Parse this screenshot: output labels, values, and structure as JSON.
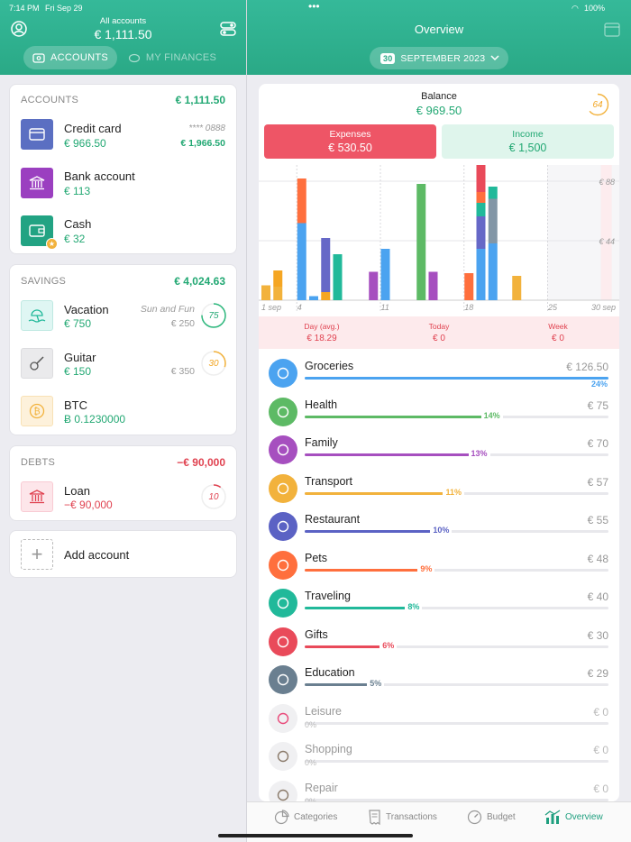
{
  "status": {
    "time": "7:14 PM",
    "date": "Fri Sep 29",
    "battery": "100%"
  },
  "left_header": {
    "subtitle": "All accounts",
    "total": "€ 1,111.50",
    "tabs": [
      "ACCOUNTS",
      "MY FINANCES"
    ],
    "active_tab": "ACCOUNTS"
  },
  "right_header": {
    "title": "Overview",
    "period_day": "30",
    "period_label": "SEPTEMBER 2023"
  },
  "accounts": {
    "title": "ACCOUNTS",
    "total": "€ 1,111.50",
    "items": [
      {
        "name": "Credit card",
        "value": "€ 966.50",
        "masked": "**** 0888",
        "limit": "€ 1,966.50",
        "icon": "credit-card-icon",
        "color": "#5b6fc2"
      },
      {
        "name": "Bank account",
        "value": "€ 113",
        "icon": "bank-icon",
        "color": "#9b3fc0"
      },
      {
        "name": "Cash",
        "value": "€ 32",
        "icon": "wallet-icon",
        "color": "#22a383"
      }
    ]
  },
  "savings": {
    "title": "SAVINGS",
    "total": "€ 4,024.63",
    "items": [
      {
        "name": "Vacation",
        "value": "€ 750",
        "note": "Sun and Fun",
        "goal": "€ 250",
        "ring": "75",
        "ring_color": "#2db87d",
        "icon": "beach-icon",
        "ring_fraction": 0.75
      },
      {
        "name": "Guitar",
        "value": "€ 150",
        "goal": "€ 350",
        "ring": "30",
        "ring_color": "#f2b23c",
        "icon": "guitar-icon",
        "ring_fraction": 0.3
      },
      {
        "name": "BTC",
        "value": "Ƀ 0.1230000",
        "icon": "bitcoin-icon"
      }
    ]
  },
  "debts": {
    "title": "DEBTS",
    "total": "−€ 90,000",
    "items": [
      {
        "name": "Loan",
        "value": "−€ 90,000",
        "ring": "10",
        "ring_color": "#e04250",
        "icon": "bank-icon",
        "ring_fraction": 0.1
      }
    ]
  },
  "add_account": {
    "label": "Add account"
  },
  "overview": {
    "balance_label": "Balance",
    "balance": "€ 969.50",
    "badge": "64",
    "expenses_label": "Expenses",
    "expenses": "€ 530.50",
    "income_label": "Income",
    "income": "€ 1,500",
    "stats": [
      {
        "label": "Day (avg.)",
        "value": "€ 18.29"
      },
      {
        "label": "Today",
        "value": "€ 0"
      },
      {
        "label": "Week",
        "value": "€ 0"
      }
    ]
  },
  "chart_data": {
    "type": "bar",
    "x_tick_labels": [
      "1 sep",
      "4",
      "11",
      "18",
      "25",
      "30 sep"
    ],
    "y_tick_labels": [
      "€ 88",
      "€ 44"
    ],
    "ylim": [
      0,
      100
    ],
    "days": [
      1,
      2,
      4,
      5,
      6,
      7,
      8,
      10,
      11,
      13,
      14,
      15,
      17,
      18,
      19,
      20,
      22
    ],
    "series": [
      {
        "color": "#f2b23c",
        "values": [
          11,
          10,
          0,
          0,
          0,
          0,
          0,
          0,
          0,
          0,
          0,
          0,
          0,
          0,
          0,
          0,
          18
        ]
      },
      {
        "color": "#f5a623",
        "values": [
          0,
          12,
          0,
          0,
          6,
          0,
          0,
          0,
          0,
          0,
          0,
          0,
          0,
          0,
          0,
          0,
          0
        ]
      },
      {
        "color": "#a64fbf",
        "values": [
          0,
          0,
          0,
          0,
          0,
          0,
          0,
          21,
          0,
          0,
          0,
          21,
          0,
          0,
          0,
          0,
          0
        ]
      },
      {
        "color": "#4ba3f0",
        "values": [
          0,
          0,
          57,
          3,
          0,
          0,
          0,
          0,
          38,
          0,
          0,
          0,
          0,
          0,
          38,
          42,
          0
        ]
      },
      {
        "color": "#6668c7",
        "values": [
          0,
          0,
          0,
          0,
          40,
          0,
          0,
          0,
          0,
          0,
          0,
          0,
          0,
          0,
          24,
          0,
          0
        ]
      },
      {
        "color": "#21b99a",
        "values": [
          0,
          0,
          0,
          0,
          0,
          34,
          0,
          0,
          0,
          0,
          0,
          0,
          0,
          0,
          10,
          0,
          0
        ]
      },
      {
        "color": "#ff6f3d",
        "values": [
          0,
          0,
          21,
          0,
          0,
          0,
          0,
          0,
          0,
          0,
          0,
          0,
          0,
          20,
          8,
          0,
          0
        ]
      },
      {
        "color": "#e94a5a",
        "values": [
          0,
          0,
          0,
          0,
          0,
          0,
          0,
          0,
          0,
          0,
          0,
          0,
          0,
          0,
          21,
          0,
          0
        ]
      },
      {
        "color": "#5dba65",
        "values": [
          0,
          0,
          0,
          0,
          0,
          0,
          0,
          0,
          0,
          0,
          86,
          0,
          0,
          0,
          0,
          0,
          0
        ]
      },
      {
        "color": "#8296a6",
        "values": [
          0,
          0,
          0,
          0,
          0,
          0,
          0,
          0,
          0,
          0,
          0,
          0,
          0,
          0,
          0,
          33,
          0
        ]
      },
      {
        "color": "#21b99a",
        "values": [
          0,
          0,
          0,
          0,
          0,
          0,
          0,
          0,
          0,
          0,
          0,
          0,
          0,
          0,
          0,
          9,
          0
        ]
      },
      {
        "color": "#ff6f3d",
        "values": [
          0,
          0,
          12,
          0,
          0,
          0,
          0,
          0,
          0,
          0,
          0,
          0,
          0,
          0,
          0,
          0,
          0
        ]
      }
    ]
  },
  "categories": [
    {
      "name": "Groceries",
      "amount": "€ 126.50",
      "pct": "24%",
      "fraction": 0.24,
      "color": "#4ba3f0",
      "icon": "basket-icon"
    },
    {
      "name": "Health",
      "amount": "€ 75",
      "pct": "14%",
      "fraction": 0.14,
      "color": "#5dba65",
      "icon": "heart-hand-icon"
    },
    {
      "name": "Family",
      "amount": "€ 70",
      "pct": "13%",
      "fraction": 0.13,
      "color": "#a64fbf",
      "icon": "smile-icon"
    },
    {
      "name": "Transport",
      "amount": "€ 57",
      "pct": "11%",
      "fraction": 0.11,
      "color": "#f2b23c",
      "icon": "bus-icon"
    },
    {
      "name": "Restaurant",
      "amount": "€ 55",
      "pct": "10%",
      "fraction": 0.1,
      "color": "#5b62c4",
      "icon": "cutlery-icon"
    },
    {
      "name": "Pets",
      "amount": "€ 48",
      "pct": "9%",
      "fraction": 0.09,
      "color": "#ff6f3d",
      "icon": "paw-icon"
    },
    {
      "name": "Traveling",
      "amount": "€ 40",
      "pct": "8%",
      "fraction": 0.08,
      "color": "#21b99a",
      "icon": "plane-icon"
    },
    {
      "name": "Gifts",
      "amount": "€ 30",
      "pct": "6%",
      "fraction": 0.06,
      "color": "#e94a5a",
      "icon": "gift-icon"
    },
    {
      "name": "Education",
      "amount": "€ 29",
      "pct": "5%",
      "fraction": 0.05,
      "color": "#6a7f90",
      "icon": "book-icon"
    },
    {
      "name": "Leisure",
      "amount": "€ 0",
      "pct": "0%",
      "fraction": 0,
      "color": "#e94a7a",
      "icon": "ticket-icon",
      "muted": true
    },
    {
      "name": "Shopping",
      "amount": "€ 0",
      "pct": "0%",
      "fraction": 0,
      "color": "#8a7a6a",
      "icon": "bag-icon",
      "muted": true
    },
    {
      "name": "Repair",
      "amount": "€ 0",
      "pct": "0%",
      "fraction": 0,
      "color": "#8a7a6a",
      "icon": "brush-icon",
      "muted": true
    }
  ],
  "tabbar": {
    "items": [
      "Categories",
      "Transactions",
      "Budget",
      "Overview"
    ],
    "active": "Overview"
  }
}
